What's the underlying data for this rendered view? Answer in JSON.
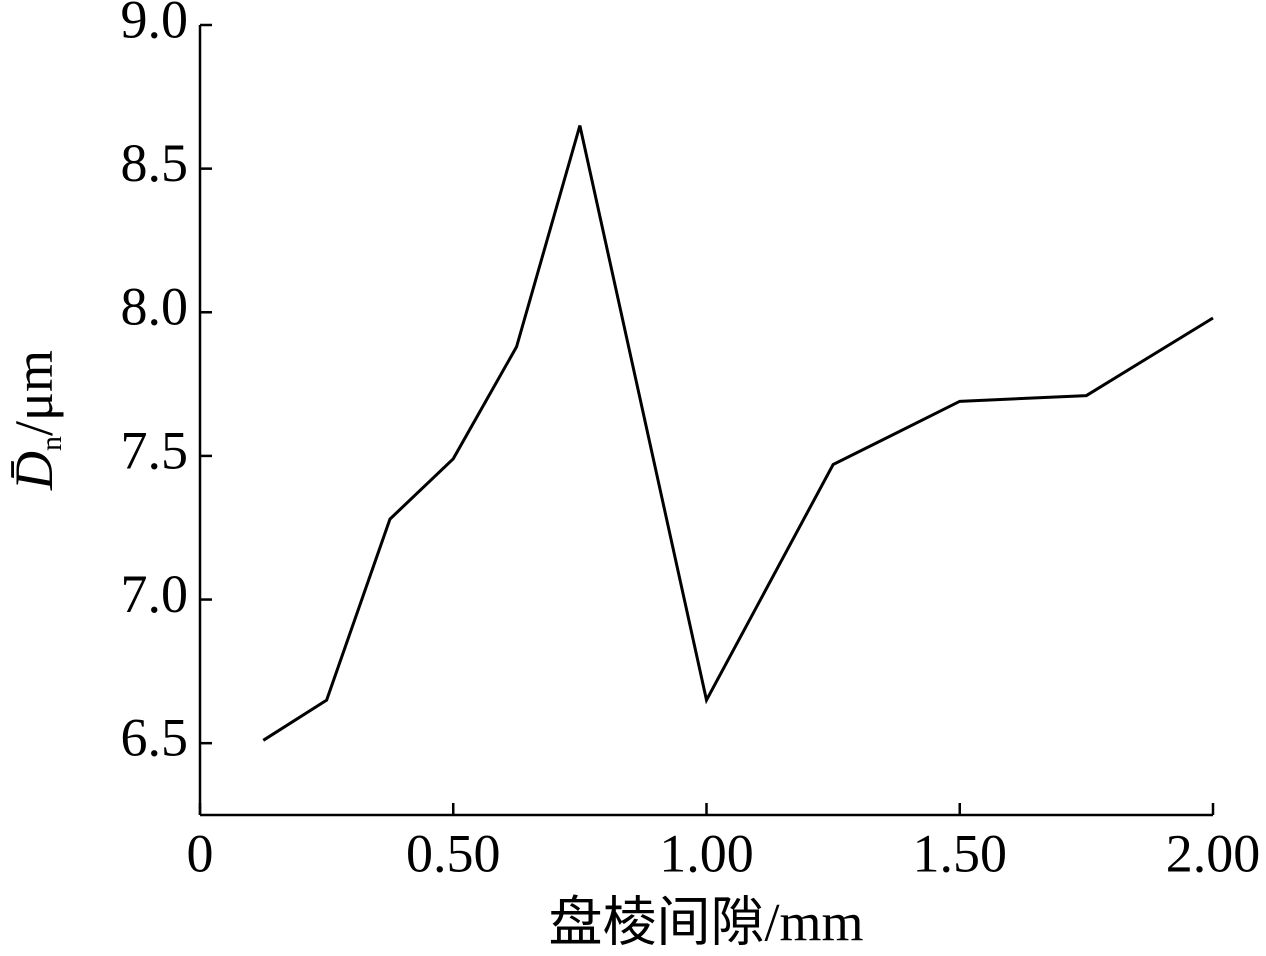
{
  "chart_data": {
    "type": "line",
    "xlabel": "盘棱间隙/mm",
    "ylabel": {
      "main": "D̄",
      "sub": "n",
      "unit": "/μm"
    },
    "x": [
      0.125,
      0.25,
      0.375,
      0.5,
      0.625,
      0.75,
      1.0,
      1.25,
      1.5,
      1.75,
      2.0
    ],
    "series": [
      {
        "color": "#000000",
        "values": [
          6.51,
          6.65,
          7.28,
          7.49,
          7.88,
          8.65,
          6.65,
          7.47,
          7.69,
          7.71,
          7.98
        ]
      }
    ],
    "xlim": [
      0,
      2.0
    ],
    "xticks": [
      0,
      {
        "value": 0.5,
        "label": "0.50"
      },
      {
        "value": 1.0,
        "label": "1.00"
      },
      {
        "value": 1.5,
        "label": "1.50"
      },
      {
        "value": 2.0,
        "label": "2.00"
      }
    ],
    "ylim": [
      6.25,
      9.0
    ],
    "yticks": [
      6.5,
      {
        "value": 7.0,
        "label": "7.0"
      },
      7.5,
      {
        "value": 8.0,
        "label": "8.0"
      },
      8.5,
      {
        "value": 9.0,
        "label": "9.0"
      }
    ],
    "grid": false
  }
}
